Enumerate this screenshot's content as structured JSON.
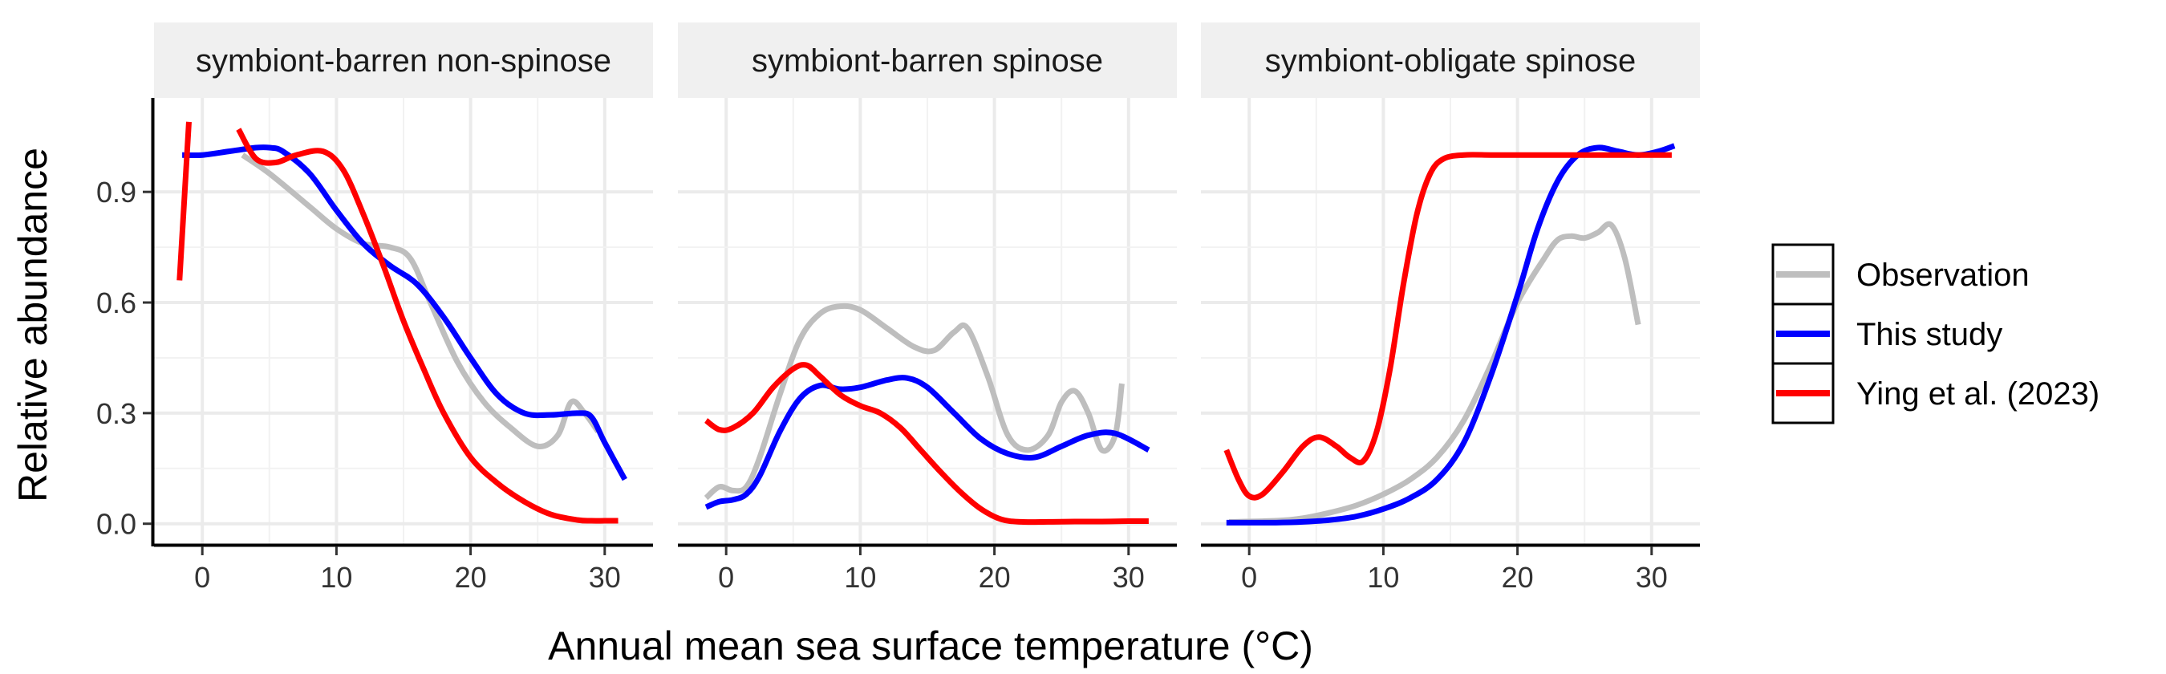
{
  "chart_data": {
    "type": "line",
    "xlabel": "Annual mean sea surface temperature (°C)",
    "ylabel": "Relative abundance",
    "xlim": [
      -3.6,
      33.6
    ],
    "ylim": [
      -0.055,
      1.155
    ],
    "x_ticks": [
      0,
      10,
      20,
      30
    ],
    "x_tick_labels": [
      "0",
      "10",
      "20",
      "30"
    ],
    "y_ticks": [
      0,
      0.3,
      0.6,
      0.9
    ],
    "y_tick_labels": [
      "0.0",
      "0.3",
      "0.6",
      "0.9"
    ],
    "grid": true,
    "legend_position": "right",
    "colors": {
      "Observation": "#bebebe",
      "This study": "#0000ff",
      "Ying et al. (2023)": "#ff0000"
    },
    "series_names": [
      "Observation",
      "This study",
      "Ying et al. (2023)"
    ],
    "panels": [
      {
        "title": "symbiont-barren non-spinose",
        "series": [
          {
            "name": "Observation",
            "x": [
              3,
              5,
              8,
              10,
              12,
              14,
              15.5,
              17,
              19,
              21,
              23,
              25,
              26.5,
              27.5,
              28.5,
              29.5
            ],
            "y": [
              1.0,
              0.95,
              0.86,
              0.8,
              0.76,
              0.75,
              0.72,
              0.6,
              0.44,
              0.33,
              0.26,
              0.21,
              0.24,
              0.33,
              0.3,
              0.25
            ]
          },
          {
            "name": "This study",
            "x": [
              -1.5,
              0,
              2,
              4,
              5,
              6,
              8,
              10,
              12,
              14,
              16,
              18,
              20,
              22,
              24,
              26,
              28,
              29,
              30,
              31.5
            ],
            "y": [
              1.0,
              1.0,
              1.01,
              1.02,
              1.02,
              1.01,
              0.95,
              0.85,
              0.76,
              0.7,
              0.65,
              0.56,
              0.45,
              0.35,
              0.3,
              0.295,
              0.3,
              0.29,
              0.22,
              0.12
            ]
          },
          {
            "name": "Ying et al. (2023)",
            "x": [
              -1.7,
              -1.0
            ],
            "y": [
              0.66,
              1.09
            ]
          },
          {
            "name": "Ying et al. (2023)",
            "x": [
              2.7,
              4,
              5.5,
              7,
              9,
              10.5,
              12,
              13.5,
              15,
              16.5,
              18,
              20,
              22,
              24,
              26,
              28,
              29,
              30,
              31
            ],
            "y": [
              1.07,
              0.99,
              0.98,
              1.0,
              1.01,
              0.96,
              0.84,
              0.7,
              0.55,
              0.42,
              0.3,
              0.18,
              0.11,
              0.06,
              0.025,
              0.01,
              0.008,
              0.008,
              0.008
            ]
          }
        ]
      },
      {
        "title": "symbiont-barren spinose",
        "series": [
          {
            "name": "Observation",
            "x": [
              -1.5,
              -0.5,
              0.5,
              1.5,
              2.5,
              4,
              5.5,
              7,
              8.5,
              10,
              12,
              14,
              15.5,
              17,
              18,
              19.5,
              21,
              22.5,
              24,
              25,
              26,
              27,
              28,
              29,
              29.5
            ],
            "y": [
              0.07,
              0.1,
              0.09,
              0.1,
              0.18,
              0.35,
              0.5,
              0.57,
              0.59,
              0.58,
              0.53,
              0.48,
              0.47,
              0.52,
              0.53,
              0.4,
              0.24,
              0.2,
              0.24,
              0.33,
              0.36,
              0.3,
              0.2,
              0.24,
              0.38
            ]
          },
          {
            "name": "This study",
            "x": [
              -1.5,
              -0.5,
              0.5,
              1.5,
              2.5,
              4,
              5.5,
              7,
              8.5,
              10,
              12,
              13.5,
              15,
              17,
              19,
              21,
              23,
              25,
              27,
              29,
              31.5
            ],
            "y": [
              0.045,
              0.06,
              0.065,
              0.08,
              0.13,
              0.25,
              0.34,
              0.375,
              0.365,
              0.37,
              0.39,
              0.395,
              0.37,
              0.3,
              0.23,
              0.19,
              0.18,
              0.21,
              0.24,
              0.245,
              0.2
            ]
          },
          {
            "name": "Ying et al. (2023)",
            "x": [
              -1.5,
              -0.5,
              0.5,
              2,
              3.5,
              5,
              6,
              7,
              8.5,
              10,
              11.5,
              13,
              14.5,
              16,
              17.5,
              19,
              20.5,
              22,
              24,
              26,
              28,
              30,
              31.5
            ],
            "y": [
              0.28,
              0.255,
              0.26,
              0.3,
              0.37,
              0.42,
              0.43,
              0.4,
              0.35,
              0.32,
              0.3,
              0.26,
              0.2,
              0.14,
              0.085,
              0.04,
              0.012,
              0.005,
              0.005,
              0.006,
              0.006,
              0.007,
              0.007
            ]
          }
        ]
      },
      {
        "title": "symbiont-obligate spinose",
        "series": [
          {
            "name": "Observation",
            "x": [
              -1.5,
              2,
              4,
              6,
              8,
              10,
              12,
              14,
              16,
              18,
              20,
              22,
              23,
              24,
              25,
              26,
              27,
              28,
              29
            ],
            "y": [
              0.005,
              0.008,
              0.015,
              0.03,
              0.05,
              0.08,
              0.12,
              0.18,
              0.28,
              0.43,
              0.6,
              0.72,
              0.77,
              0.78,
              0.775,
              0.79,
              0.81,
              0.72,
              0.54
            ]
          },
          {
            "name": "This study",
            "x": [
              -1.7,
              2,
              4,
              6,
              8,
              10,
              12,
              14,
              16,
              18,
              20,
              21.5,
              23,
              24.5,
              26,
              27.5,
              29,
              30.5,
              31.7
            ],
            "y": [
              0.003,
              0.003,
              0.005,
              0.01,
              0.02,
              0.04,
              0.07,
              0.12,
              0.22,
              0.4,
              0.62,
              0.8,
              0.93,
              1.0,
              1.02,
              1.01,
              1.0,
              1.01,
              1.025
            ]
          },
          {
            "name": "Ying et al. (2023)",
            "x": [
              -1.7,
              -0.8,
              0,
              1,
              2.5,
              4,
              5.2,
              6.5,
              7.5,
              8.5,
              9.5,
              10.5,
              11.5,
              12.5,
              13.5,
              14.5,
              16,
              18,
              20,
              24,
              28,
              31.5
            ],
            "y": [
              0.2,
              0.12,
              0.075,
              0.08,
              0.14,
              0.21,
              0.235,
              0.21,
              0.18,
              0.17,
              0.25,
              0.42,
              0.65,
              0.84,
              0.95,
              0.99,
              1.0,
              1.0,
              1.0,
              1.0,
              1.0,
              1.0
            ]
          }
        ]
      }
    ]
  }
}
